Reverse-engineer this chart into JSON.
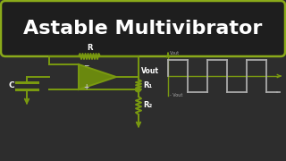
{
  "bg_color": "#2d2d2d",
  "title_text": "Astable Multivibrator",
  "title_color": "#ffffff",
  "title_box_color": "#8aaa1a",
  "title_box_fill": "#1e1e1e",
  "circuit_color": "#7a9a10",
  "waveform_color": "#aaaaaa",
  "label_white": "#ffffff",
  "label_green": "#7a9a10",
  "figsize": [
    3.2,
    1.8
  ],
  "dpi": 100,
  "opamp_filled": true,
  "opamp_fill_color": "#6a880e"
}
